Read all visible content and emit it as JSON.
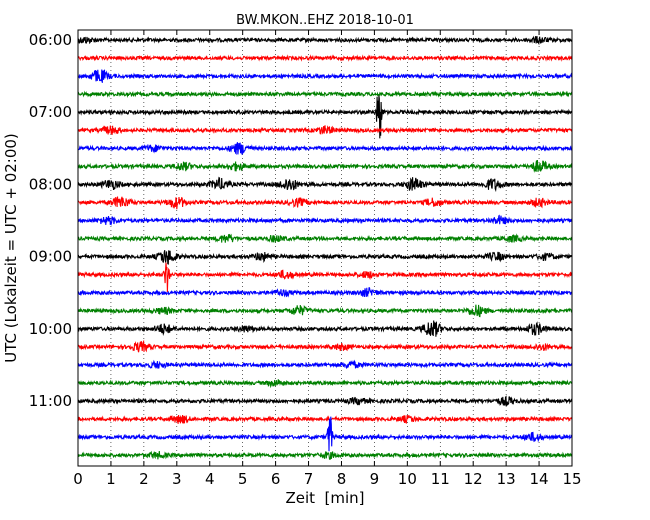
{
  "chart_data": {
    "type": "line",
    "title": "BW.MKON..EHZ 2018-10-01",
    "xlabel": "Zeit  [min]",
    "ylabel": "UTC (Lokalzeit = UTC + 02:00)",
    "xlim": [
      0,
      15
    ],
    "x_ticks": [
      "0",
      "1",
      "2",
      "3",
      "4",
      "5",
      "6",
      "7",
      "8",
      "9",
      "10",
      "11",
      "12",
      "13",
      "14",
      "15"
    ],
    "y_ticks": [
      "06:00",
      "07:00",
      "08:00",
      "09:00",
      "10:00",
      "11:00"
    ],
    "grid": "vertical-dotted",
    "trace_colors": [
      "#000000",
      "#ff0000",
      "#0000ff",
      "#008000"
    ],
    "traces": [
      {
        "start": "06:00",
        "color": "#000000",
        "events": [
          {
            "t": 14.0,
            "amp": 0.15
          },
          {
            "t": 0.2,
            "amp": 0.15
          }
        ]
      },
      {
        "start": "06:15",
        "color": "#ff0000",
        "events": []
      },
      {
        "start": "06:30",
        "color": "#0000ff",
        "events": [
          {
            "t": 0.65,
            "amp": 0.35
          }
        ]
      },
      {
        "start": "06:45",
        "color": "#008000",
        "events": []
      },
      {
        "start": "07:00",
        "color": "#000000",
        "events": [
          {
            "t": 9.15,
            "amp": 2.1
          }
        ]
      },
      {
        "start": "07:15",
        "color": "#ff0000",
        "events": [
          {
            "t": 1.0,
            "amp": 0.2
          },
          {
            "t": 7.5,
            "amp": 0.2
          }
        ]
      },
      {
        "start": "07:30",
        "color": "#0000ff",
        "events": [
          {
            "t": 4.9,
            "amp": 0.3
          },
          {
            "t": 2.3,
            "amp": 0.15
          }
        ]
      },
      {
        "start": "07:45",
        "color": "#008000",
        "events": [
          {
            "t": 3.2,
            "amp": 0.2
          },
          {
            "t": 4.8,
            "amp": 0.2
          },
          {
            "t": 14.0,
            "amp": 0.3
          }
        ]
      },
      {
        "start": "08:00",
        "color": "#000000",
        "events": [
          {
            "t": 1.0,
            "amp": 0.25
          },
          {
            "t": 4.3,
            "amp": 0.3
          },
          {
            "t": 6.4,
            "amp": 0.35
          },
          {
            "t": 10.2,
            "amp": 0.35
          },
          {
            "t": 12.6,
            "amp": 0.3
          }
        ]
      },
      {
        "start": "08:15",
        "color": "#ff0000",
        "events": [
          {
            "t": 1.3,
            "amp": 0.3
          },
          {
            "t": 3.0,
            "amp": 0.3
          },
          {
            "t": 6.7,
            "amp": 0.2
          },
          {
            "t": 14.0,
            "amp": 0.2
          },
          {
            "t": 10.8,
            "amp": 0.2
          }
        ]
      },
      {
        "start": "08:30",
        "color": "#0000ff",
        "events": [
          {
            "t": 0.9,
            "amp": 0.2
          },
          {
            "t": 12.8,
            "amp": 0.2
          }
        ]
      },
      {
        "start": "08:45",
        "color": "#008000",
        "events": [
          {
            "t": 4.5,
            "amp": 0.2
          },
          {
            "t": 6.0,
            "amp": 0.15
          },
          {
            "t": 13.2,
            "amp": 0.15
          }
        ]
      },
      {
        "start": "09:00",
        "color": "#000000",
        "events": [
          {
            "t": 2.7,
            "amp": 0.4
          },
          {
            "t": 5.6,
            "amp": 0.2
          },
          {
            "t": 12.7,
            "amp": 0.2
          },
          {
            "t": 14.2,
            "amp": 0.15
          }
        ]
      },
      {
        "start": "09:15",
        "color": "#ff0000",
        "events": [
          {
            "t": 2.7,
            "amp": 1.0
          },
          {
            "t": 6.3,
            "amp": 0.2
          },
          {
            "t": 8.8,
            "amp": 0.15
          }
        ]
      },
      {
        "start": "09:30",
        "color": "#0000ff",
        "events": [
          {
            "t": 8.8,
            "amp": 0.2
          },
          {
            "t": 6.2,
            "amp": 0.15
          }
        ]
      },
      {
        "start": "09:45",
        "color": "#008000",
        "events": [
          {
            "t": 2.6,
            "amp": 0.15
          },
          {
            "t": 6.7,
            "amp": 0.25
          },
          {
            "t": 12.1,
            "amp": 0.3
          }
        ]
      },
      {
        "start": "10:00",
        "color": "#000000",
        "events": [
          {
            "t": 2.6,
            "amp": 0.25
          },
          {
            "t": 10.75,
            "amp": 0.45
          },
          {
            "t": 13.9,
            "amp": 0.3
          },
          {
            "t": 5.1,
            "amp": 0.15
          }
        ]
      },
      {
        "start": "10:15",
        "color": "#ff0000",
        "events": [
          {
            "t": 1.9,
            "amp": 0.25
          },
          {
            "t": 8.0,
            "amp": 0.15
          },
          {
            "t": 14.1,
            "amp": 0.15
          }
        ]
      },
      {
        "start": "10:30",
        "color": "#0000ff",
        "events": [
          {
            "t": 2.4,
            "amp": 0.15
          },
          {
            "t": 8.3,
            "amp": 0.15
          }
        ]
      },
      {
        "start": "10:45",
        "color": "#008000",
        "events": [
          {
            "t": 6.0,
            "amp": 0.15
          }
        ]
      },
      {
        "start": "11:00",
        "color": "#000000",
        "events": [
          {
            "t": 13.0,
            "amp": 0.2
          },
          {
            "t": 8.5,
            "amp": 0.15
          }
        ]
      },
      {
        "start": "11:15",
        "color": "#ff0000",
        "events": [
          {
            "t": 3.1,
            "amp": 0.2
          },
          {
            "t": 10.0,
            "amp": 0.15
          }
        ]
      },
      {
        "start": "11:30",
        "color": "#0000ff",
        "events": [
          {
            "t": 7.65,
            "amp": 1.3
          },
          {
            "t": 13.8,
            "amp": 0.2
          }
        ]
      },
      {
        "start": "11:45",
        "color": "#008000",
        "events": [
          {
            "t": 2.4,
            "amp": 0.15
          },
          {
            "t": 7.6,
            "amp": 0.15
          }
        ]
      }
    ]
  }
}
